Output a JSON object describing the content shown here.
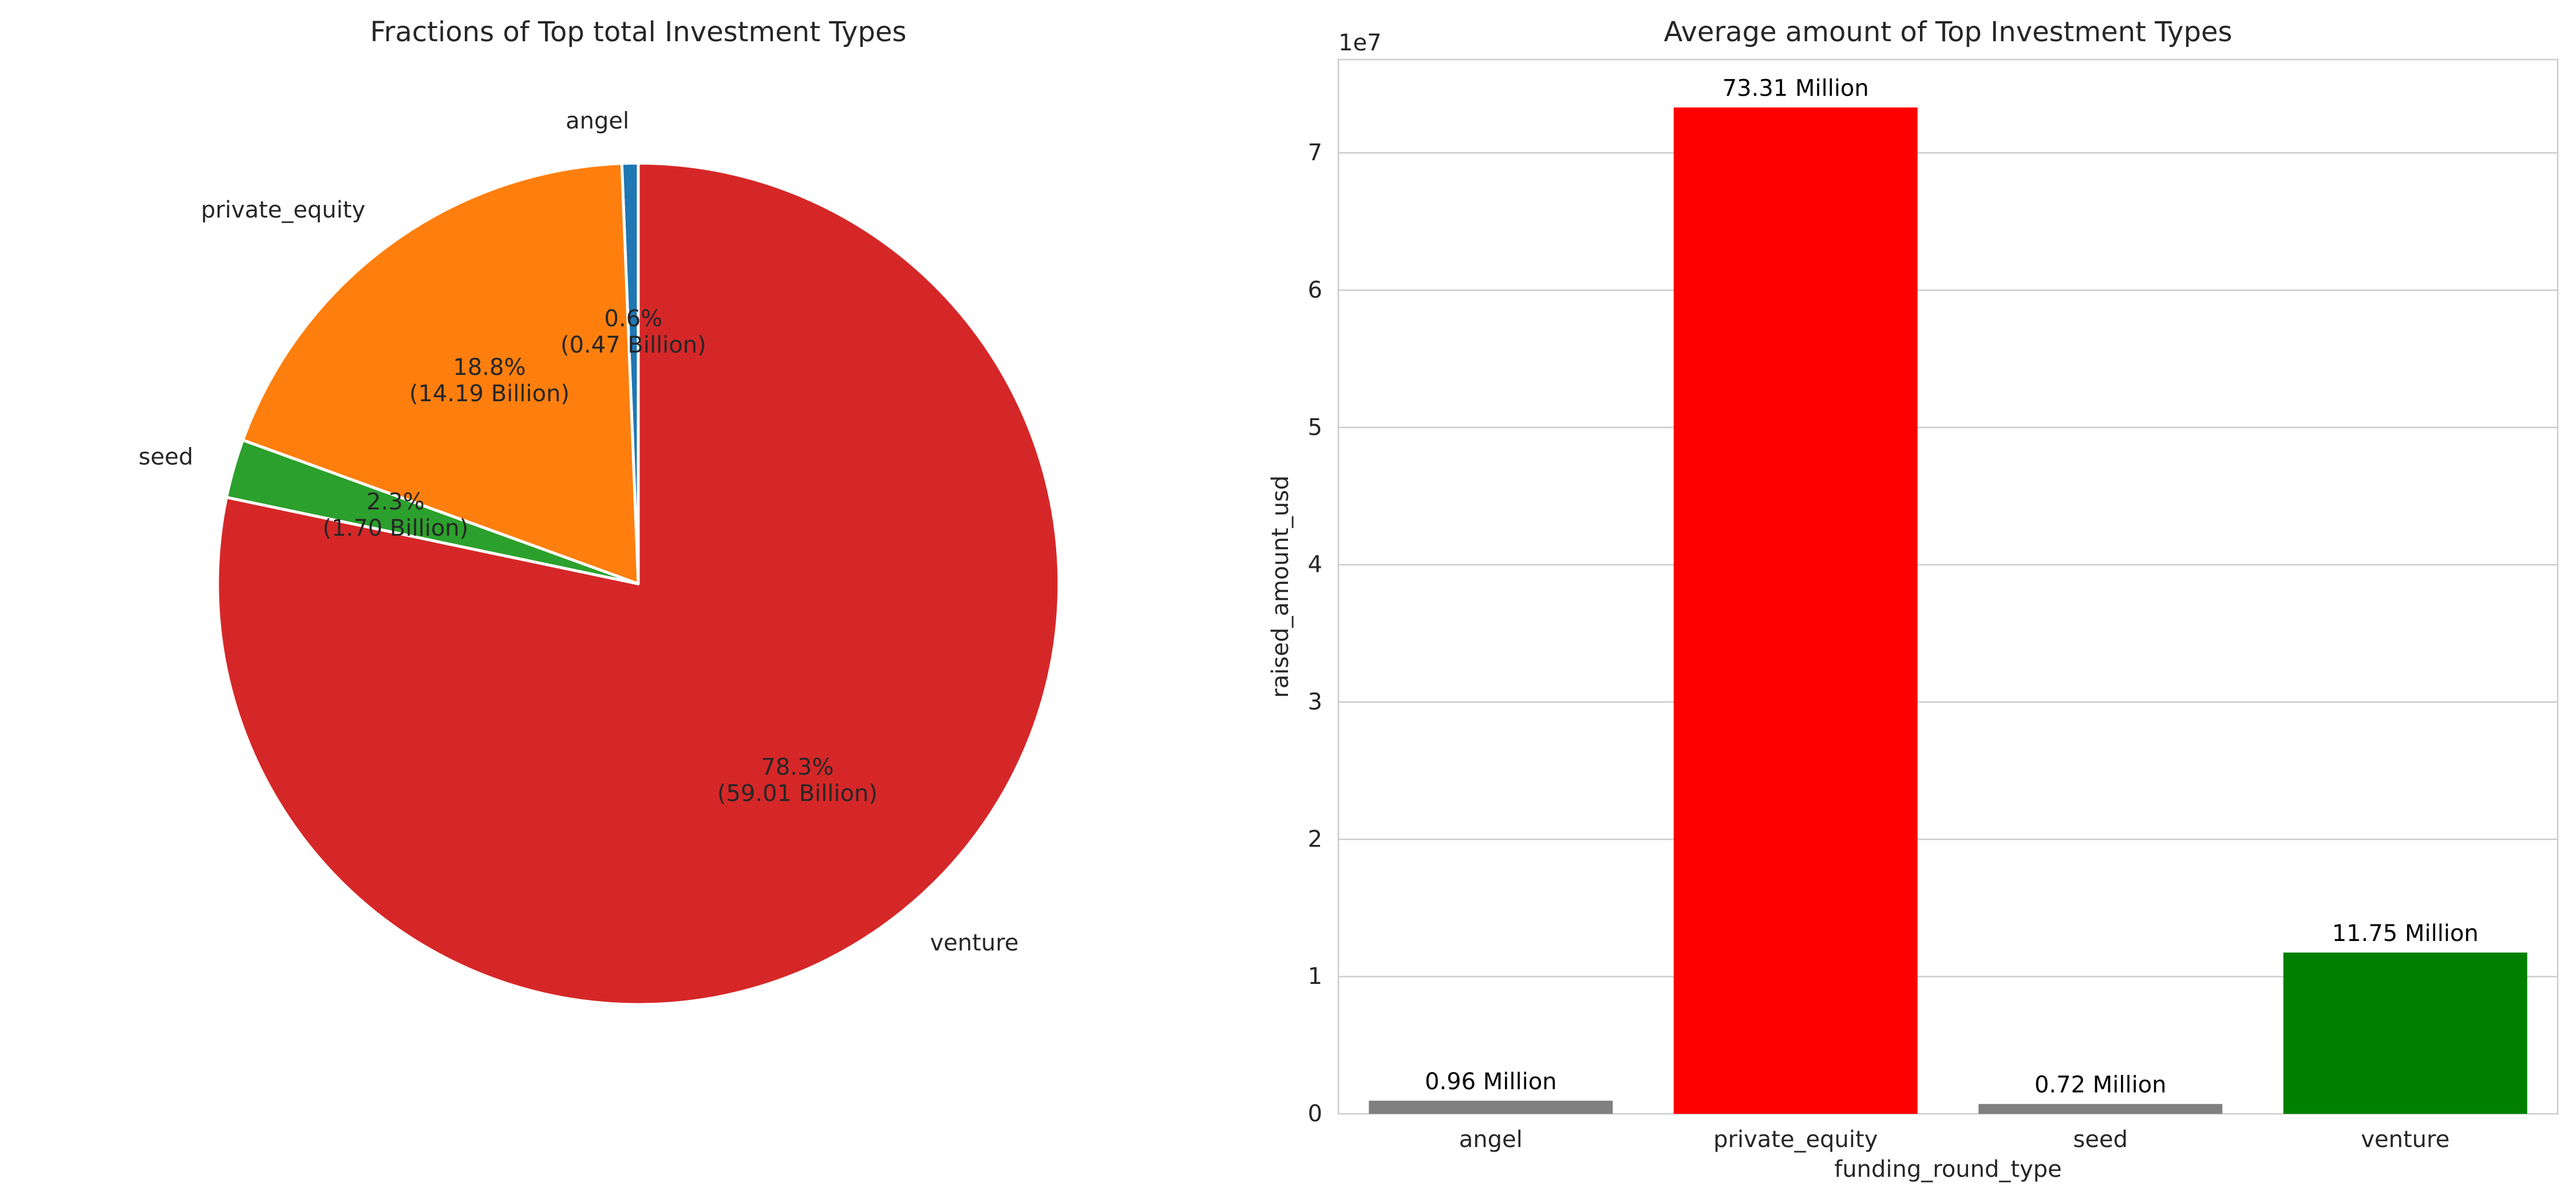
{
  "chart_data": [
    {
      "type": "pie",
      "title": "Fractions of Top total Investment Types",
      "start_angle_deg": 90,
      "direction": "counterclockwise",
      "slices": [
        {
          "label": "angel",
          "percent_label": "0.6%",
          "amount_label": "(0.47 Billion)",
          "value": 0.47,
          "color": "#1f77b4"
        },
        {
          "label": "private_equity",
          "percent_label": "18.8%",
          "amount_label": "(14.19 Billion)",
          "value": 14.19,
          "color": "#ff7f0e"
        },
        {
          "label": "seed",
          "percent_label": "2.3%",
          "amount_label": "(1.70 Billion)",
          "value": 1.7,
          "color": "#2ca02c"
        },
        {
          "label": "venture",
          "percent_label": "78.3%",
          "amount_label": "(59.01 Billion)",
          "value": 59.01,
          "color": "#d62728"
        }
      ]
    },
    {
      "type": "bar",
      "title": "Average amount of Top Investment Types",
      "xlabel": "funding_round_type",
      "ylabel": "raised_amount_usd",
      "offset_label": "1e7",
      "categories": [
        "angel",
        "private_equity",
        "seed",
        "venture"
      ],
      "values": [
        958694.5,
        73308593.0,
        719779.6,
        11748949.1
      ],
      "bar_labels": [
        "0.96 Million",
        "73.31 Million",
        "0.72 Million",
        "11.75 Million"
      ],
      "colors": [
        "#808080",
        "#ff0000",
        "#808080",
        "#008000"
      ],
      "ylim": [
        0,
        76800000
      ],
      "yticks": [
        0,
        10000000,
        20000000,
        30000000,
        40000000,
        50000000,
        60000000,
        70000000
      ],
      "ytick_labels": [
        "0",
        "1",
        "2",
        "3",
        "4",
        "5",
        "6",
        "7"
      ],
      "grid": "horizontal"
    }
  ]
}
